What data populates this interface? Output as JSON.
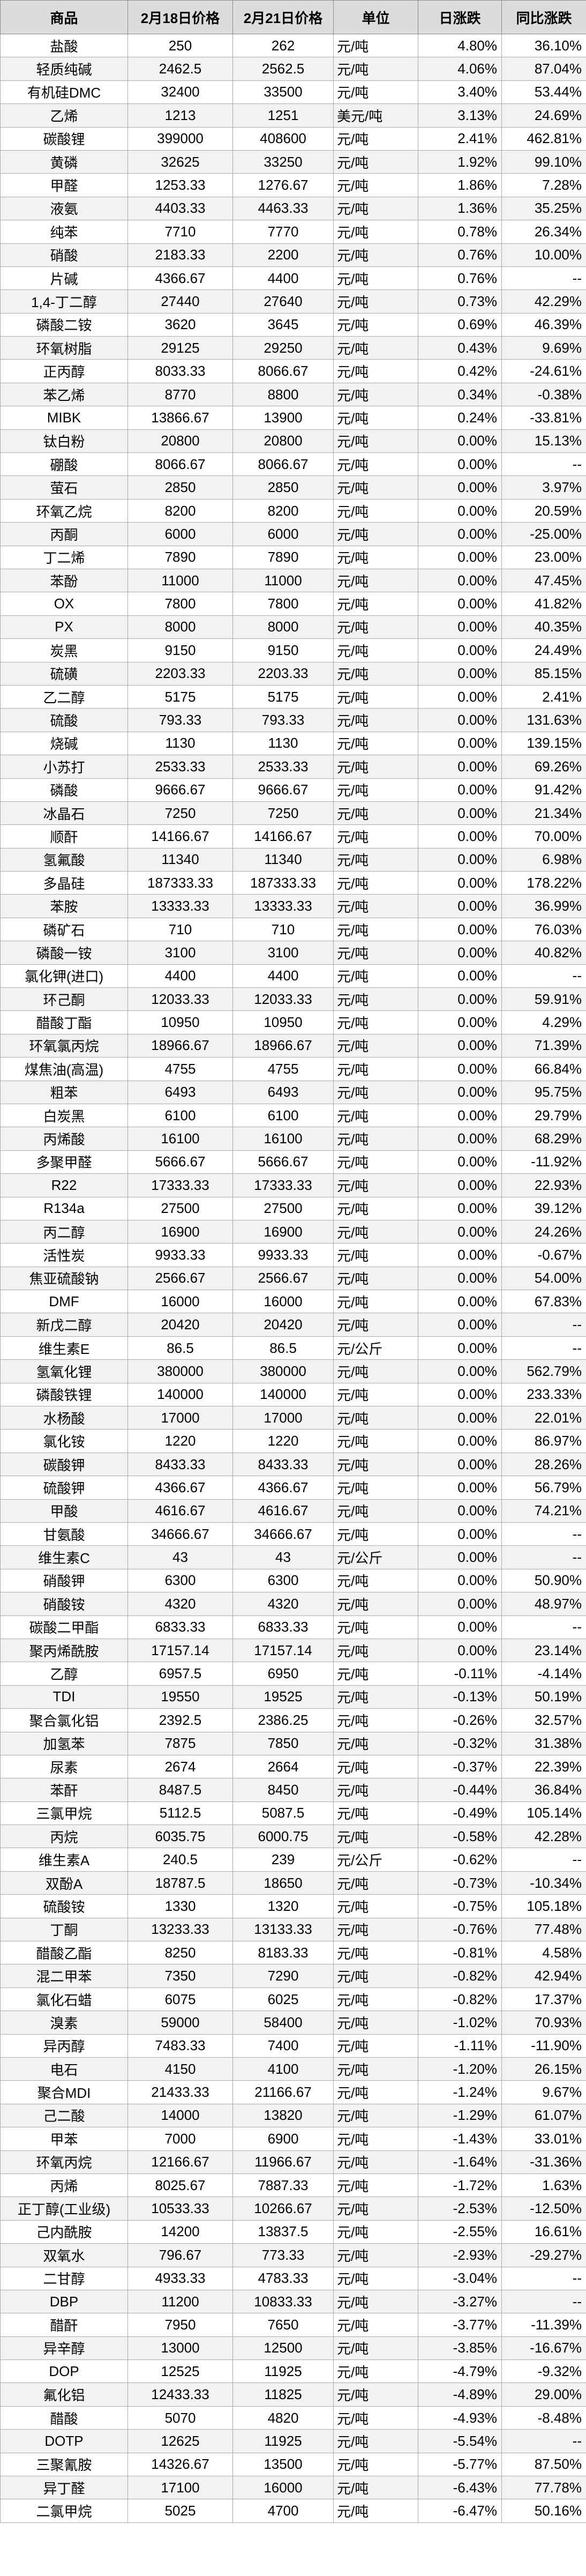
{
  "table": {
    "headers": [
      "商品",
      "2月18日价格",
      "2月21日价格",
      "单位",
      "日涨跌",
      "同比涨跌"
    ],
    "rows": [
      [
        "盐酸",
        "250",
        "262",
        "元/吨",
        "4.80%",
        "36.10%"
      ],
      [
        "轻质纯碱",
        "2462.5",
        "2562.5",
        "元/吨",
        "4.06%",
        "87.04%"
      ],
      [
        "有机硅DMC",
        "32400",
        "33500",
        "元/吨",
        "3.40%",
        "53.44%"
      ],
      [
        "乙烯",
        "1213",
        "1251",
        "美元/吨",
        "3.13%",
        "24.69%"
      ],
      [
        "碳酸锂",
        "399000",
        "408600",
        "元/吨",
        "2.41%",
        "462.81%"
      ],
      [
        "黄磷",
        "32625",
        "33250",
        "元/吨",
        "1.92%",
        "99.10%"
      ],
      [
        "甲醛",
        "1253.33",
        "1276.67",
        "元/吨",
        "1.86%",
        "7.28%"
      ],
      [
        "液氨",
        "4403.33",
        "4463.33",
        "元/吨",
        "1.36%",
        "35.25%"
      ],
      [
        "纯苯",
        "7710",
        "7770",
        "元/吨",
        "0.78%",
        "26.34%"
      ],
      [
        "硝酸",
        "2183.33",
        "2200",
        "元/吨",
        "0.76%",
        "10.00%"
      ],
      [
        "片碱",
        "4366.67",
        "4400",
        "元/吨",
        "0.76%",
        "--"
      ],
      [
        "1,4-丁二醇",
        "27440",
        "27640",
        "元/吨",
        "0.73%",
        "42.29%"
      ],
      [
        "磷酸二铵",
        "3620",
        "3645",
        "元/吨",
        "0.69%",
        "46.39%"
      ],
      [
        "环氧树脂",
        "29125",
        "29250",
        "元/吨",
        "0.43%",
        "9.69%"
      ],
      [
        "正丙醇",
        "8033.33",
        "8066.67",
        "元/吨",
        "0.42%",
        "-24.61%"
      ],
      [
        "苯乙烯",
        "8770",
        "8800",
        "元/吨",
        "0.34%",
        "-0.38%"
      ],
      [
        "MIBK",
        "13866.67",
        "13900",
        "元/吨",
        "0.24%",
        "-33.81%"
      ],
      [
        "钛白粉",
        "20800",
        "20800",
        "元/吨",
        "0.00%",
        "15.13%"
      ],
      [
        "硼酸",
        "8066.67",
        "8066.67",
        "元/吨",
        "0.00%",
        "--"
      ],
      [
        "萤石",
        "2850",
        "2850",
        "元/吨",
        "0.00%",
        "3.97%"
      ],
      [
        "环氧乙烷",
        "8200",
        "8200",
        "元/吨",
        "0.00%",
        "20.59%"
      ],
      [
        "丙酮",
        "6000",
        "6000",
        "元/吨",
        "0.00%",
        "-25.00%"
      ],
      [
        "丁二烯",
        "7890",
        "7890",
        "元/吨",
        "0.00%",
        "23.00%"
      ],
      [
        "苯酚",
        "11000",
        "11000",
        "元/吨",
        "0.00%",
        "47.45%"
      ],
      [
        "OX",
        "7800",
        "7800",
        "元/吨",
        "0.00%",
        "41.82%"
      ],
      [
        "PX",
        "8000",
        "8000",
        "元/吨",
        "0.00%",
        "40.35%"
      ],
      [
        "炭黑",
        "9150",
        "9150",
        "元/吨",
        "0.00%",
        "24.49%"
      ],
      [
        "硫磺",
        "2203.33",
        "2203.33",
        "元/吨",
        "0.00%",
        "85.15%"
      ],
      [
        "乙二醇",
        "5175",
        "5175",
        "元/吨",
        "0.00%",
        "2.41%"
      ],
      [
        "硫酸",
        "793.33",
        "793.33",
        "元/吨",
        "0.00%",
        "131.63%"
      ],
      [
        "烧碱",
        "1130",
        "1130",
        "元/吨",
        "0.00%",
        "139.15%"
      ],
      [
        "小苏打",
        "2533.33",
        "2533.33",
        "元/吨",
        "0.00%",
        "69.26%"
      ],
      [
        "磷酸",
        "9666.67",
        "9666.67",
        "元/吨",
        "0.00%",
        "91.42%"
      ],
      [
        "冰晶石",
        "7250",
        "7250",
        "元/吨",
        "0.00%",
        "21.34%"
      ],
      [
        "顺酐",
        "14166.67",
        "14166.67",
        "元/吨",
        "0.00%",
        "70.00%"
      ],
      [
        "氢氟酸",
        "11340",
        "11340",
        "元/吨",
        "0.00%",
        "6.98%"
      ],
      [
        "多晶硅",
        "187333.33",
        "187333.33",
        "元/吨",
        "0.00%",
        "178.22%"
      ],
      [
        "苯胺",
        "13333.33",
        "13333.33",
        "元/吨",
        "0.00%",
        "36.99%"
      ],
      [
        "磷矿石",
        "710",
        "710",
        "元/吨",
        "0.00%",
        "76.03%"
      ],
      [
        "磷酸一铵",
        "3100",
        "3100",
        "元/吨",
        "0.00%",
        "40.82%"
      ],
      [
        "氯化钾(进口)",
        "4400",
        "4400",
        "元/吨",
        "0.00%",
        "--"
      ],
      [
        "环己酮",
        "12033.33",
        "12033.33",
        "元/吨",
        "0.00%",
        "59.91%"
      ],
      [
        "醋酸丁酯",
        "10950",
        "10950",
        "元/吨",
        "0.00%",
        "4.29%"
      ],
      [
        "环氧氯丙烷",
        "18966.67",
        "18966.67",
        "元/吨",
        "0.00%",
        "71.39%"
      ],
      [
        "煤焦油(高温)",
        "4755",
        "4755",
        "元/吨",
        "0.00%",
        "66.84%"
      ],
      [
        "粗苯",
        "6493",
        "6493",
        "元/吨",
        "0.00%",
        "95.75%"
      ],
      [
        "白炭黑",
        "6100",
        "6100",
        "元/吨",
        "0.00%",
        "29.79%"
      ],
      [
        "丙烯酸",
        "16100",
        "16100",
        "元/吨",
        "0.00%",
        "68.29%"
      ],
      [
        "多聚甲醛",
        "5666.67",
        "5666.67",
        "元/吨",
        "0.00%",
        "-11.92%"
      ],
      [
        "R22",
        "17333.33",
        "17333.33",
        "元/吨",
        "0.00%",
        "22.93%"
      ],
      [
        "R134a",
        "27500",
        "27500",
        "元/吨",
        "0.00%",
        "39.12%"
      ],
      [
        "丙二醇",
        "16900",
        "16900",
        "元/吨",
        "0.00%",
        "24.26%"
      ],
      [
        "活性炭",
        "9933.33",
        "9933.33",
        "元/吨",
        "0.00%",
        "-0.67%"
      ],
      [
        "焦亚硫酸钠",
        "2566.67",
        "2566.67",
        "元/吨",
        "0.00%",
        "54.00%"
      ],
      [
        "DMF",
        "16000",
        "16000",
        "元/吨",
        "0.00%",
        "67.83%"
      ],
      [
        "新戊二醇",
        "20420",
        "20420",
        "元/吨",
        "0.00%",
        "--"
      ],
      [
        "维生素E",
        "86.5",
        "86.5",
        "元/公斤",
        "0.00%",
        "--"
      ],
      [
        "氢氧化锂",
        "380000",
        "380000",
        "元/吨",
        "0.00%",
        "562.79%"
      ],
      [
        "磷酸铁锂",
        "140000",
        "140000",
        "元/吨",
        "0.00%",
        "233.33%"
      ],
      [
        "水杨酸",
        "17000",
        "17000",
        "元/吨",
        "0.00%",
        "22.01%"
      ],
      [
        "氯化铵",
        "1220",
        "1220",
        "元/吨",
        "0.00%",
        "86.97%"
      ],
      [
        "碳酸钾",
        "8433.33",
        "8433.33",
        "元/吨",
        "0.00%",
        "28.26%"
      ],
      [
        "硫酸钾",
        "4366.67",
        "4366.67",
        "元/吨",
        "0.00%",
        "56.79%"
      ],
      [
        "甲酸",
        "4616.67",
        "4616.67",
        "元/吨",
        "0.00%",
        "74.21%"
      ],
      [
        "甘氨酸",
        "34666.67",
        "34666.67",
        "元/吨",
        "0.00%",
        "--"
      ],
      [
        "维生素C",
        "43",
        "43",
        "元/公斤",
        "0.00%",
        "--"
      ],
      [
        "硝酸钾",
        "6300",
        "6300",
        "元/吨",
        "0.00%",
        "50.90%"
      ],
      [
        "硝酸铵",
        "4320",
        "4320",
        "元/吨",
        "0.00%",
        "48.97%"
      ],
      [
        "碳酸二甲酯",
        "6833.33",
        "6833.33",
        "元/吨",
        "0.00%",
        "--"
      ],
      [
        "聚丙烯酰胺",
        "17157.14",
        "17157.14",
        "元/吨",
        "0.00%",
        "23.14%"
      ],
      [
        "乙醇",
        "6957.5",
        "6950",
        "元/吨",
        "-0.11%",
        "-4.14%"
      ],
      [
        "TDI",
        "19550",
        "19525",
        "元/吨",
        "-0.13%",
        "50.19%"
      ],
      [
        "聚合氯化铝",
        "2392.5",
        "2386.25",
        "元/吨",
        "-0.26%",
        "32.57%"
      ],
      [
        "加氢苯",
        "7875",
        "7850",
        "元/吨",
        "-0.32%",
        "31.38%"
      ],
      [
        "尿素",
        "2674",
        "2664",
        "元/吨",
        "-0.37%",
        "22.39%"
      ],
      [
        "苯酐",
        "8487.5",
        "8450",
        "元/吨",
        "-0.44%",
        "36.84%"
      ],
      [
        "三氯甲烷",
        "5112.5",
        "5087.5",
        "元/吨",
        "-0.49%",
        "105.14%"
      ],
      [
        "丙烷",
        "6035.75",
        "6000.75",
        "元/吨",
        "-0.58%",
        "42.28%"
      ],
      [
        "维生素A",
        "240.5",
        "239",
        "元/公斤",
        "-0.62%",
        "--"
      ],
      [
        "双酚A",
        "18787.5",
        "18650",
        "元/吨",
        "-0.73%",
        "-10.34%"
      ],
      [
        "硫酸铵",
        "1330",
        "1320",
        "元/吨",
        "-0.75%",
        "105.18%"
      ],
      [
        "丁酮",
        "13233.33",
        "13133.33",
        "元/吨",
        "-0.76%",
        "77.48%"
      ],
      [
        "醋酸乙酯",
        "8250",
        "8183.33",
        "元/吨",
        "-0.81%",
        "4.58%"
      ],
      [
        "混二甲苯",
        "7350",
        "7290",
        "元/吨",
        "-0.82%",
        "42.94%"
      ],
      [
        "氯化石蜡",
        "6075",
        "6025",
        "元/吨",
        "-0.82%",
        "17.37%"
      ],
      [
        "溴素",
        "59000",
        "58400",
        "元/吨",
        "-1.02%",
        "70.93%"
      ],
      [
        "异丙醇",
        "7483.33",
        "7400",
        "元/吨",
        "-1.11%",
        "-11.90%"
      ],
      [
        "电石",
        "4150",
        "4100",
        "元/吨",
        "-1.20%",
        "26.15%"
      ],
      [
        "聚合MDI",
        "21433.33",
        "21166.67",
        "元/吨",
        "-1.24%",
        "9.67%"
      ],
      [
        "己二酸",
        "14000",
        "13820",
        "元/吨",
        "-1.29%",
        "61.07%"
      ],
      [
        "甲苯",
        "7000",
        "6900",
        "元/吨",
        "-1.43%",
        "33.01%"
      ],
      [
        "环氧丙烷",
        "12166.67",
        "11966.67",
        "元/吨",
        "-1.64%",
        "-31.36%"
      ],
      [
        "丙烯",
        "8025.67",
        "7887.33",
        "元/吨",
        "-1.72%",
        "1.63%"
      ],
      [
        "正丁醇(工业级)",
        "10533.33",
        "10266.67",
        "元/吨",
        "-2.53%",
        "-12.50%"
      ],
      [
        "己内酰胺",
        "14200",
        "13837.5",
        "元/吨",
        "-2.55%",
        "16.61%"
      ],
      [
        "双氧水",
        "796.67",
        "773.33",
        "元/吨",
        "-2.93%",
        "-29.27%"
      ],
      [
        "二甘醇",
        "4933.33",
        "4783.33",
        "元/吨",
        "-3.04%",
        "--"
      ],
      [
        "DBP",
        "11200",
        "10833.33",
        "元/吨",
        "-3.27%",
        "--"
      ],
      [
        "醋酐",
        "7950",
        "7650",
        "元/吨",
        "-3.77%",
        "-11.39%"
      ],
      [
        "异辛醇",
        "13000",
        "12500",
        "元/吨",
        "-3.85%",
        "-16.67%"
      ],
      [
        "DOP",
        "12525",
        "11925",
        "元/吨",
        "-4.79%",
        "-9.32%"
      ],
      [
        "氟化铝",
        "12433.33",
        "11825",
        "元/吨",
        "-4.89%",
        "29.00%"
      ],
      [
        "醋酸",
        "5070",
        "4820",
        "元/吨",
        "-4.93%",
        "-8.48%"
      ],
      [
        "DOTP",
        "12625",
        "11925",
        "元/吨",
        "-5.54%",
        "--"
      ],
      [
        "三聚氰胺",
        "14326.67",
        "13500",
        "元/吨",
        "-5.77%",
        "87.50%"
      ],
      [
        "异丁醛",
        "17100",
        "16000",
        "元/吨",
        "-6.43%",
        "77.78%"
      ],
      [
        "二氯甲烷",
        "5025",
        "4700",
        "元/吨",
        "-6.47%",
        "50.16%"
      ]
    ]
  }
}
